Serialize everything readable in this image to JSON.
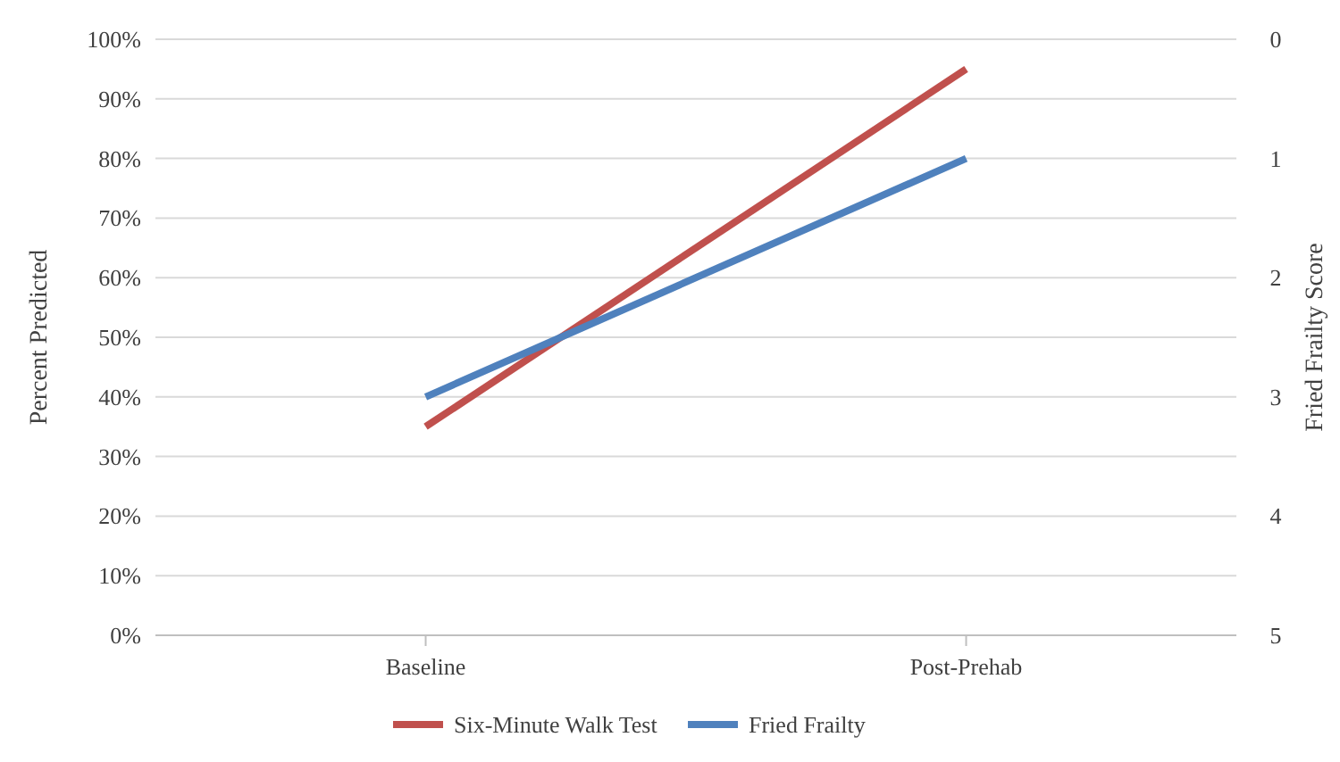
{
  "chart_data": {
    "type": "line",
    "ylabel": "Percent Predicted",
    "y2label": "Fried Frailty Score",
    "categories": [
      "Baseline",
      "Post-Prehab"
    ],
    "series": [
      {
        "name": "Six-Minute Walk Test",
        "color": "#c0504d",
        "values": [
          35,
          95
        ]
      },
      {
        "name": "Fried Frailty",
        "color": "#4f81bd",
        "values": [
          3,
          1
        ],
        "axis": "y2"
      }
    ],
    "ylim": [
      0,
      100
    ],
    "yticks": [
      {
        "value": 0,
        "label": "0%"
      },
      {
        "value": 10,
        "label": "10%"
      },
      {
        "value": 20,
        "label": "20%"
      },
      {
        "value": 30,
        "label": "30%"
      },
      {
        "value": 40,
        "label": "40%"
      },
      {
        "value": 50,
        "label": "50%"
      },
      {
        "value": 60,
        "label": "60%"
      },
      {
        "value": 70,
        "label": "70%"
      },
      {
        "value": 80,
        "label": "80%"
      },
      {
        "value": 90,
        "label": "90%"
      },
      {
        "value": 100,
        "label": "100%"
      }
    ],
    "y2lim": [
      5,
      0
    ],
    "y2ticks": [
      0,
      1,
      2,
      3,
      4,
      5
    ],
    "grid": "y",
    "legend": "bottom",
    "marker": "none",
    "line_style": "solid"
  }
}
